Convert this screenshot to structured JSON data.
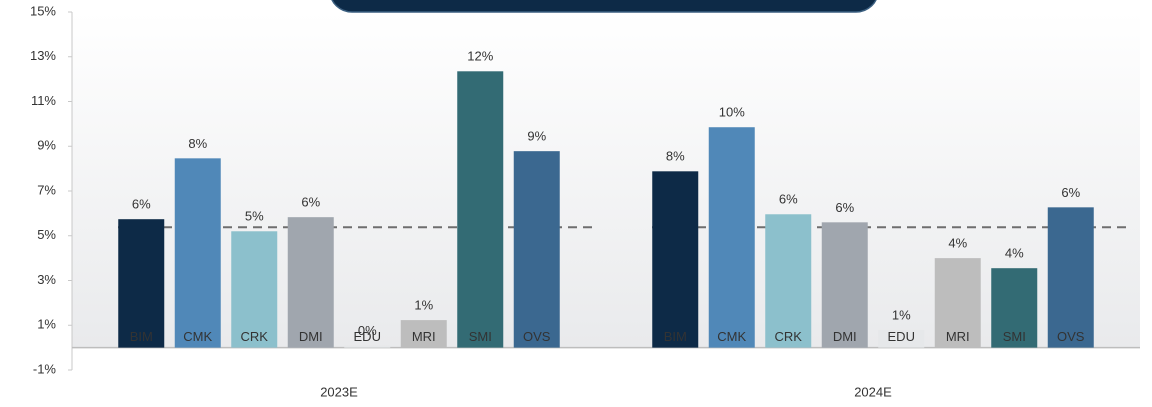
{
  "chart_data": {
    "type": "bar",
    "categories": [
      "2023E",
      "2024E"
    ],
    "series": [
      {
        "name": "BIM",
        "color": "#0d2a47",
        "values": [
          5.74,
          7.88
        ],
        "value_labels": [
          "6%",
          "8%"
        ]
      },
      {
        "name": "CMK",
        "color": "#5088b8",
        "values": [
          8.46,
          9.85
        ],
        "value_labels": [
          "8%",
          "10%"
        ]
      },
      {
        "name": "CRK",
        "color": "#8cc0cc",
        "values": [
          5.2,
          5.96
        ],
        "value_labels": [
          "5%",
          "6%"
        ]
      },
      {
        "name": "DMI",
        "color": "#a0a6ae",
        "values": [
          5.83,
          5.6
        ],
        "value_labels": [
          "6%",
          "6%"
        ]
      },
      {
        "name": "EDU",
        "color": "#e6e8ea",
        "values": [
          0.1,
          0.79
        ],
        "value_labels": [
          "0%",
          "1%"
        ]
      },
      {
        "name": "MRI",
        "color": "#bdbdbd",
        "values": [
          1.23,
          4.0
        ],
        "value_labels": [
          "1%",
          "4%"
        ]
      },
      {
        "name": "SMI",
        "color": "#336b74",
        "values": [
          12.35,
          3.55
        ],
        "value_labels": [
          "12%",
          "4%"
        ]
      },
      {
        "name": "OVS",
        "color": "#3b6890",
        "values": [
          8.78,
          6.27
        ],
        "value_labels": [
          "9%",
          "6%"
        ]
      }
    ],
    "reference_line": 5.38,
    "ylim": [
      -1,
      15
    ],
    "yticks": [
      {
        "value": -1,
        "label": "-1%"
      },
      {
        "value": 1,
        "label": "1%"
      },
      {
        "value": 3,
        "label": "3%"
      },
      {
        "value": 5,
        "label": "5%"
      },
      {
        "value": 7,
        "label": "7%"
      },
      {
        "value": 9,
        "label": "9%"
      },
      {
        "value": 11,
        "label": "11%"
      },
      {
        "value": 13,
        "label": "13%"
      },
      {
        "value": 15,
        "label": "15%"
      }
    ]
  }
}
